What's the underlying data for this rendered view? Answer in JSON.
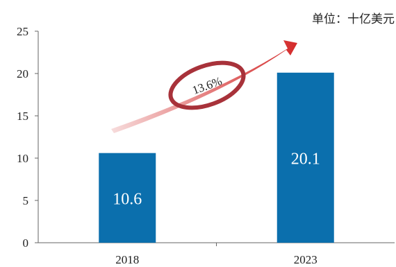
{
  "unit_label": "单位：十亿美元",
  "colors": {
    "bar": "#0b6fad",
    "arrow_start": "#f7dcdc",
    "arrow_end": "#d42a2a",
    "ellipse": "#a8323a",
    "axis": "#666666"
  },
  "chart_data": {
    "type": "bar",
    "categories": [
      "2018",
      "2023"
    ],
    "values": [
      10.6,
      20.1
    ],
    "data_labels": [
      "10.6",
      "20.1"
    ],
    "ylim": [
      0,
      25
    ],
    "yticks": [
      0,
      5,
      10,
      15,
      20,
      25
    ],
    "grid": false,
    "annotation": "13.6%"
  }
}
